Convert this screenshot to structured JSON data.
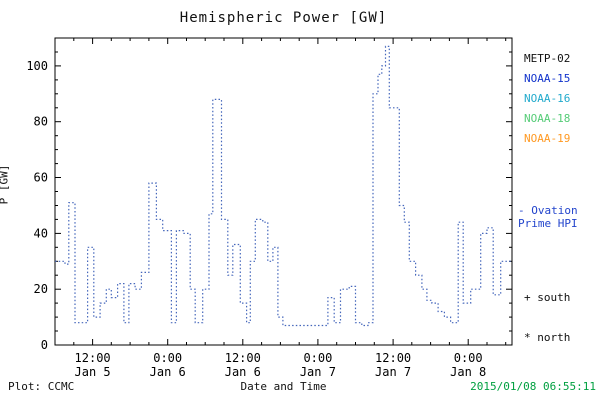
{
  "title": "Hemispheric Power [GW]",
  "footer": {
    "plot_source": "Plot: CCMC",
    "timestamp": "2015/01/08 06:55:11",
    "timestamp_color": "#00a040"
  },
  "legend": {
    "satellites": [
      {
        "label": "METP-02",
        "color": "#111111"
      },
      {
        "label": "NOAA-15",
        "color": "#1133cc"
      },
      {
        "label": "NOAA-16",
        "color": "#22aacc"
      },
      {
        "label": "NOAA-18",
        "color": "#55cc77"
      },
      {
        "label": "NOAA-19",
        "color": "#ff9922"
      }
    ],
    "line_label": "- Ovation\nPrime HPI",
    "line_label_color": "#2244cc",
    "south_marker": "+ south",
    "north_marker": "* north"
  },
  "chart_data": {
    "type": "line",
    "line_style": "dotted-step",
    "title": "Hemispheric Power [GW]",
    "xlabel": "Date and Time",
    "ylabel": "P [GW]",
    "x_unit": "hours since 2015-01-05 06:00",
    "xlim": [
      0,
      73
    ],
    "ylim": [
      0,
      110
    ],
    "y_ticks": [
      0,
      20,
      40,
      60,
      80,
      100
    ],
    "y_minor_step": 5,
    "x_minor_step": 3,
    "x_ticks": [
      {
        "t": 6,
        "time": "12:00",
        "date": "Jan 5"
      },
      {
        "t": 18,
        "time": "0:00",
        "date": "Jan 6"
      },
      {
        "t": 30,
        "time": "12:00",
        "date": "Jan 6"
      },
      {
        "t": 42,
        "time": "0:00",
        "date": "Jan 7"
      },
      {
        "t": 54,
        "time": "12:00",
        "date": "Jan 7"
      },
      {
        "t": 66,
        "time": "0:00",
        "date": "Jan 8"
      }
    ],
    "series": [
      {
        "name": "Ovation Prime HPI",
        "color": "#4466bb",
        "points": [
          [
            0,
            30
          ],
          [
            1.6,
            29
          ],
          [
            2.2,
            51
          ],
          [
            3.2,
            8
          ],
          [
            5.2,
            35
          ],
          [
            6.2,
            10
          ],
          [
            7.2,
            15
          ],
          [
            8.2,
            20
          ],
          [
            9.0,
            17
          ],
          [
            10.0,
            22
          ],
          [
            11.0,
            8
          ],
          [
            11.8,
            22
          ],
          [
            12.8,
            20
          ],
          [
            13.8,
            26
          ],
          [
            15.0,
            58
          ],
          [
            16.2,
            45
          ],
          [
            17.2,
            41
          ],
          [
            18.6,
            8
          ],
          [
            19.4,
            41
          ],
          [
            20.6,
            40
          ],
          [
            21.6,
            20
          ],
          [
            22.4,
            8
          ],
          [
            23.6,
            20
          ],
          [
            24.6,
            47
          ],
          [
            25.2,
            88
          ],
          [
            26.6,
            45
          ],
          [
            27.6,
            25
          ],
          [
            28.4,
            36
          ],
          [
            29.6,
            15
          ],
          [
            30.6,
            8
          ],
          [
            31.2,
            30
          ],
          [
            32.0,
            45
          ],
          [
            33.2,
            44
          ],
          [
            34.0,
            30
          ],
          [
            34.8,
            35
          ],
          [
            35.6,
            10
          ],
          [
            36.4,
            7
          ],
          [
            43.6,
            17
          ],
          [
            44.6,
            8
          ],
          [
            45.6,
            20
          ],
          [
            47.0,
            21
          ],
          [
            48.0,
            8
          ],
          [
            49.0,
            7
          ],
          [
            50.0,
            8
          ],
          [
            50.8,
            90
          ],
          [
            51.6,
            97
          ],
          [
            52.2,
            100
          ],
          [
            52.8,
            107
          ],
          [
            53.4,
            85
          ],
          [
            55.0,
            50
          ],
          [
            55.8,
            44
          ],
          [
            56.6,
            30
          ],
          [
            57.6,
            25
          ],
          [
            58.6,
            20
          ],
          [
            59.4,
            16
          ],
          [
            60.2,
            15
          ],
          [
            61.2,
            12
          ],
          [
            62.2,
            10
          ],
          [
            63.2,
            8
          ],
          [
            64.4,
            44
          ],
          [
            65.2,
            15
          ],
          [
            66.4,
            20
          ],
          [
            68.0,
            40
          ],
          [
            69.0,
            42
          ],
          [
            70.0,
            18
          ],
          [
            71.2,
            30
          ],
          [
            73,
            30
          ]
        ]
      }
    ]
  }
}
